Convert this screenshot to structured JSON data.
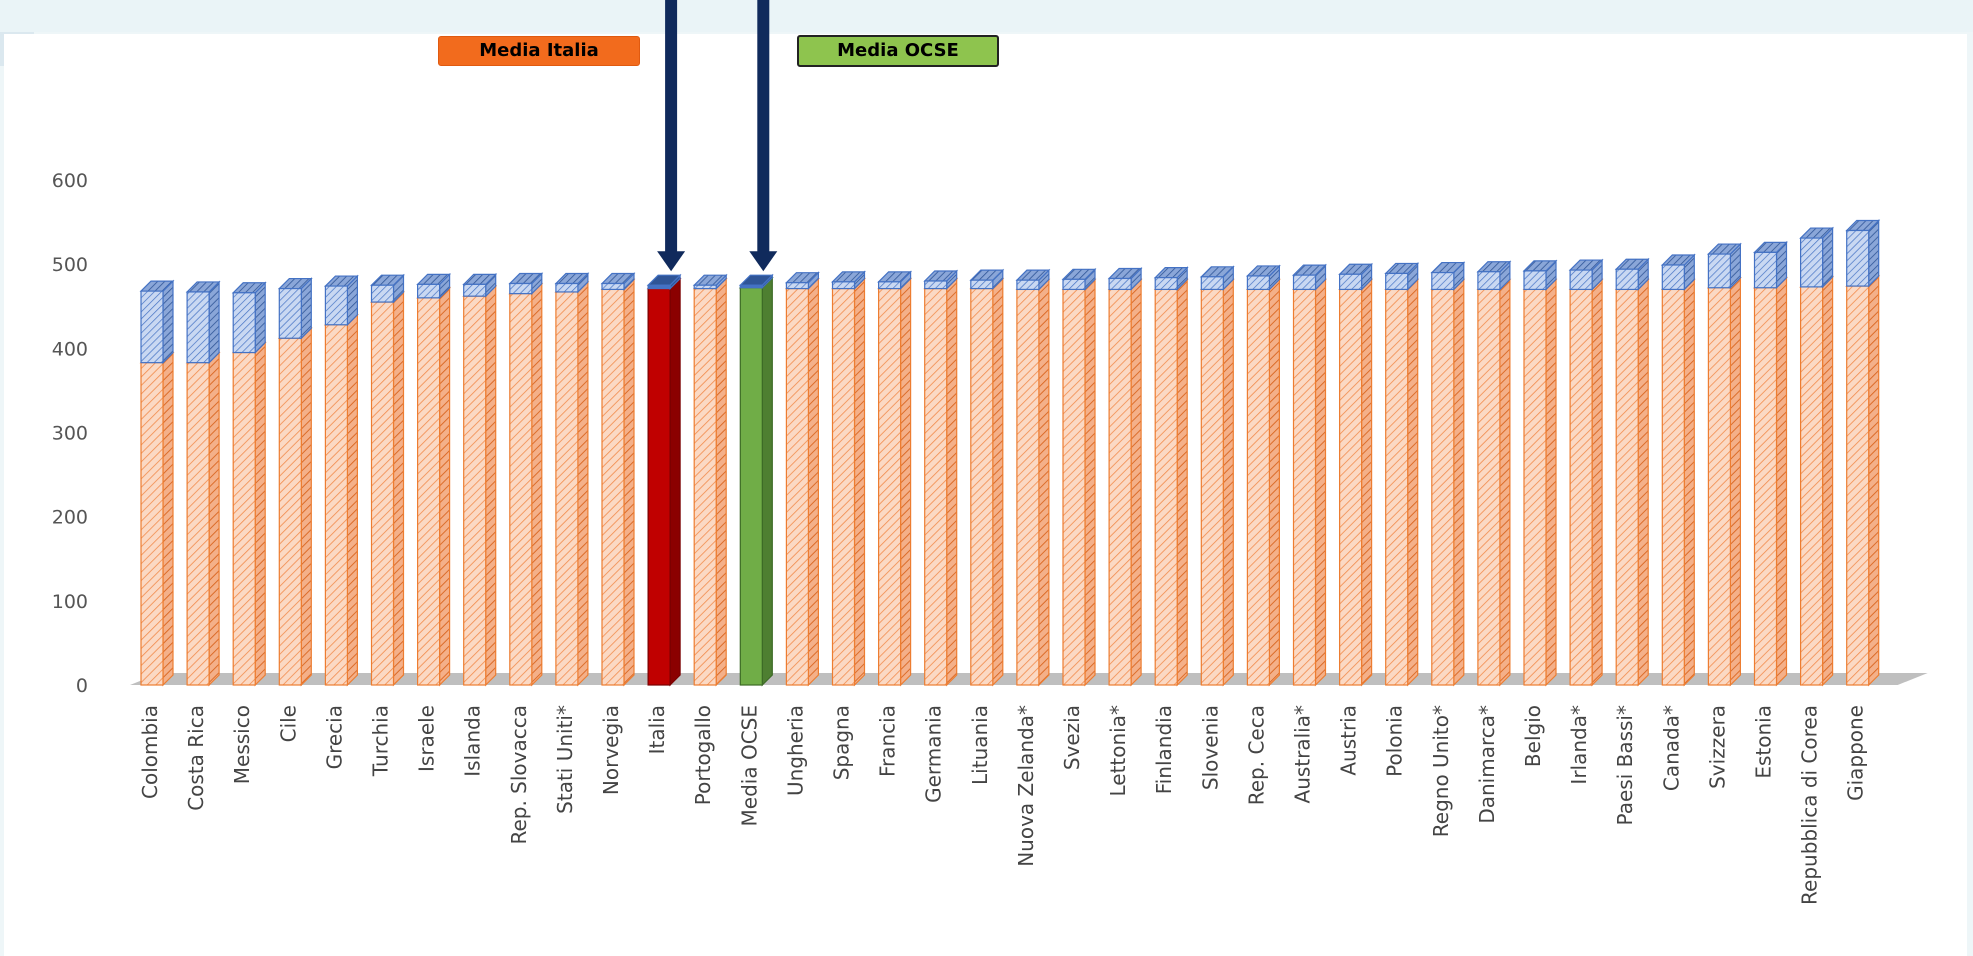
{
  "legend": {
    "italia_label": "Media Italia",
    "ocse_label": "Media OCSE"
  },
  "colors": {
    "base_bar": "#f4a77d",
    "base_bar_edge": "#ed7d31",
    "range_bar": "#a9c2ea",
    "range_bar_edge": "#4472c4",
    "italia": "#c00000",
    "ocse": "#70ad47",
    "arrow": "#102a5c",
    "floor": "#bfbfbf"
  },
  "chart_data": {
    "type": "bar",
    "stacked": true,
    "title": "",
    "xlabel": "",
    "ylabel": "",
    "ylim": [
      0,
      600
    ],
    "yticks": [
      0,
      100,
      200,
      300,
      400,
      500,
      600
    ],
    "grid": false,
    "highlight": {
      "Italia": "italia",
      "Media OCSE": "ocse"
    },
    "categories": [
      "Colombia",
      "Costa Rica",
      "Messico",
      "Cile",
      "Grecia",
      "Turchia",
      "Israele",
      "Islanda",
      "Rep. Slovacca",
      "Stati Uniti*",
      "Norvegia",
      "Italia",
      "Portogallo",
      "Media OCSE",
      "Ungheria",
      "Spagna",
      "Francia",
      "Germania",
      "Lituania",
      "Nuova Zelanda*",
      "Svezia",
      "Lettonia*",
      "Finlandia",
      "Slovenia",
      "Rep. Ceca",
      "Australia*",
      "Austria",
      "Polonia",
      "Regno Unito*",
      "Danimarca*",
      "Belgio",
      "Irlanda*",
      "Paesi Bassi*",
      "Canada*",
      "Svizzera",
      "Estonia",
      "Repubblica di Corea",
      "Giappone"
    ],
    "series": [
      {
        "values": [
          383,
          383,
          395,
          412,
          428,
          455,
          460,
          462,
          465,
          467,
          470,
          471,
          471,
          472,
          471,
          471,
          471,
          471,
          471,
          470,
          470,
          470,
          470,
          470,
          470,
          470,
          470,
          470,
          470,
          470,
          470,
          470,
          470,
          470,
          472,
          472,
          473,
          474
        ]
      },
      {
        "values": [
          85,
          84,
          71,
          59,
          46,
          20,
          16,
          14,
          12,
          10,
          7,
          4,
          4,
          3,
          7,
          8,
          8,
          9,
          10,
          11,
          12,
          13,
          14,
          15,
          16,
          17,
          18,
          19,
          20,
          21,
          22,
          23,
          24,
          29,
          40,
          42,
          58,
          66
        ]
      }
    ],
    "arrows": [
      "Italia",
      "Media OCSE"
    ]
  }
}
